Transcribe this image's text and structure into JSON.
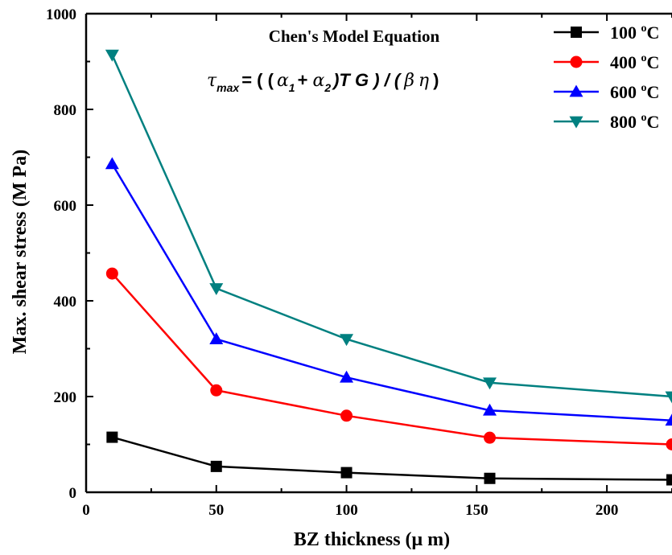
{
  "chart_data": {
    "type": "line",
    "title": "Chen's Model Equation",
    "equation": {
      "tau": "τ",
      "tau_sub": "max",
      "eq_open": "= ( (",
      "alpha": "α",
      "sub1": "1",
      "plus": "+",
      "sub2": "2",
      "mid": ")T G ) / (",
      "beta": "β",
      "eta": "η",
      "close": ")"
    },
    "xlabel": "BZ thickness (μ m)",
    "ylabel": "Max. shear stress (M Pa)",
    "xlim": [
      0,
      225
    ],
    "ylim": [
      0,
      1000
    ],
    "x_ticks": [
      0,
      50,
      100,
      150,
      200
    ],
    "y_ticks": [
      0,
      200,
      400,
      600,
      800,
      1000
    ],
    "x": [
      10,
      50,
      100,
      155,
      225
    ],
    "grid": false,
    "legend_position": "top-right",
    "degree_symbol": "o",
    "series": [
      {
        "name": "100",
        "unit": "C",
        "values": [
          115,
          54,
          41,
          29,
          26
        ],
        "color": "#000000",
        "marker": "square"
      },
      {
        "name": "400",
        "unit": "C",
        "values": [
          457,
          213,
          160,
          114,
          100
        ],
        "color": "#ff0000",
        "marker": "circle"
      },
      {
        "name": "600",
        "unit": "C",
        "values": [
          686,
          320,
          240,
          171,
          150
        ],
        "color": "#0000ff",
        "marker": "triangle-up"
      },
      {
        "name": "800",
        "unit": "C",
        "values": [
          914,
          426,
          320,
          229,
          200
        ],
        "color": "#008080",
        "marker": "triangle-down"
      }
    ]
  }
}
